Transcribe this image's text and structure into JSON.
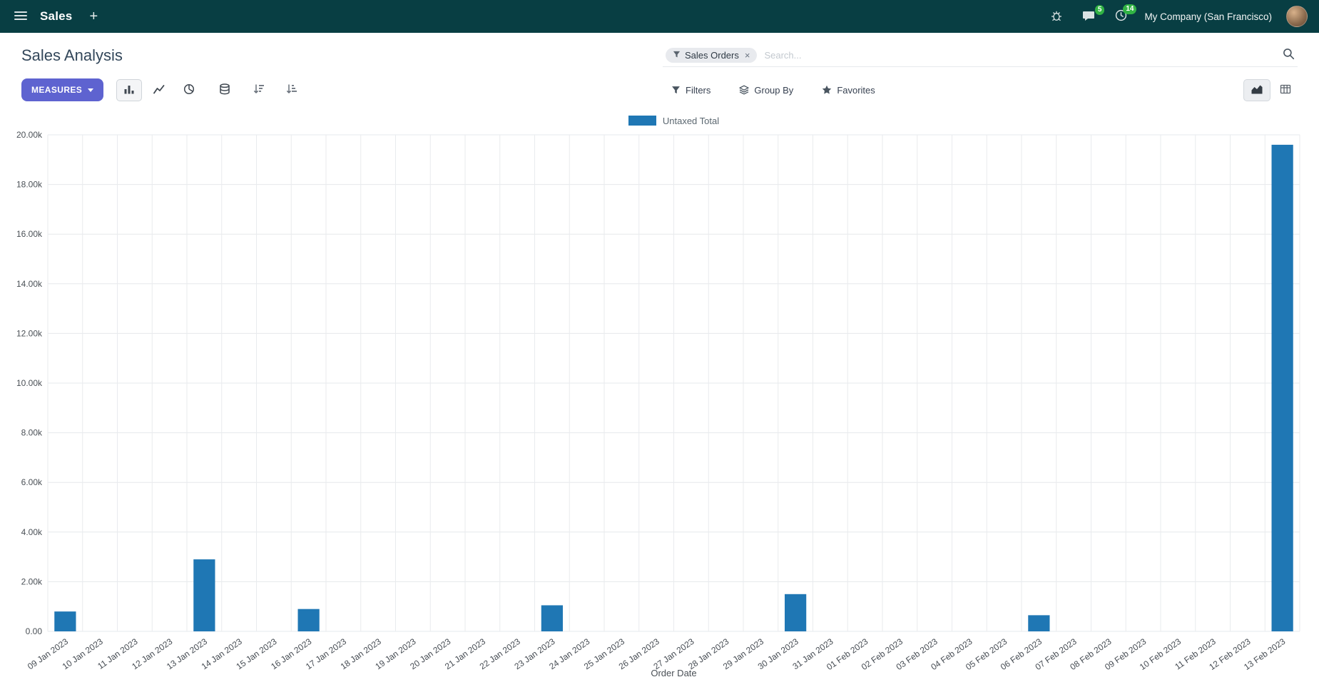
{
  "colors": {
    "navbar_bg": "#083e43",
    "primary": "#5e63d0",
    "bar": "#1f77b4",
    "badge_green": "#31b344"
  },
  "navbar": {
    "app_name": "Sales",
    "new_label": "+",
    "messages_badge": "5",
    "activities_badge": "14",
    "company": "My Company (San Francisco)"
  },
  "control_panel": {
    "title": "Sales Analysis",
    "measures_label": "MEASURES",
    "filters_label": "Filters",
    "group_by_label": "Group By",
    "favorites_label": "Favorites",
    "search": {
      "facet_label": "Sales Orders",
      "facet_remove": "×",
      "placeholder": "Search..."
    }
  },
  "chart_data": {
    "type": "bar",
    "title": "",
    "xlabel": "Order Date",
    "ylabel": "",
    "legend": [
      "Untaxed Total"
    ],
    "ylim": [
      0,
      20000
    ],
    "ytick_step": 2000,
    "grid": true,
    "legend_position": "top-center",
    "categories": [
      "09 Jan 2023",
      "10 Jan 2023",
      "11 Jan 2023",
      "12 Jan 2023",
      "13 Jan 2023",
      "14 Jan 2023",
      "15 Jan 2023",
      "16 Jan 2023",
      "17 Jan 2023",
      "18 Jan 2023",
      "19 Jan 2023",
      "20 Jan 2023",
      "21 Jan 2023",
      "22 Jan 2023",
      "23 Jan 2023",
      "24 Jan 2023",
      "25 Jan 2023",
      "26 Jan 2023",
      "27 Jan 2023",
      "28 Jan 2023",
      "29 Jan 2023",
      "30 Jan 2023",
      "31 Jan 2023",
      "01 Feb 2023",
      "02 Feb 2023",
      "03 Feb 2023",
      "04 Feb 2023",
      "05 Feb 2023",
      "06 Feb 2023",
      "07 Feb 2023",
      "08 Feb 2023",
      "09 Feb 2023",
      "10 Feb 2023",
      "11 Feb 2023",
      "12 Feb 2023",
      "13 Feb 2023"
    ],
    "series": [
      {
        "name": "Untaxed Total",
        "values": [
          800,
          0,
          0,
          0,
          2900,
          0,
          0,
          900,
          0,
          0,
          0,
          0,
          0,
          0,
          1050,
          0,
          0,
          0,
          0,
          0,
          0,
          1500,
          0,
          0,
          0,
          0,
          0,
          0,
          650,
          0,
          0,
          0,
          0,
          0,
          0,
          19600
        ]
      }
    ]
  }
}
